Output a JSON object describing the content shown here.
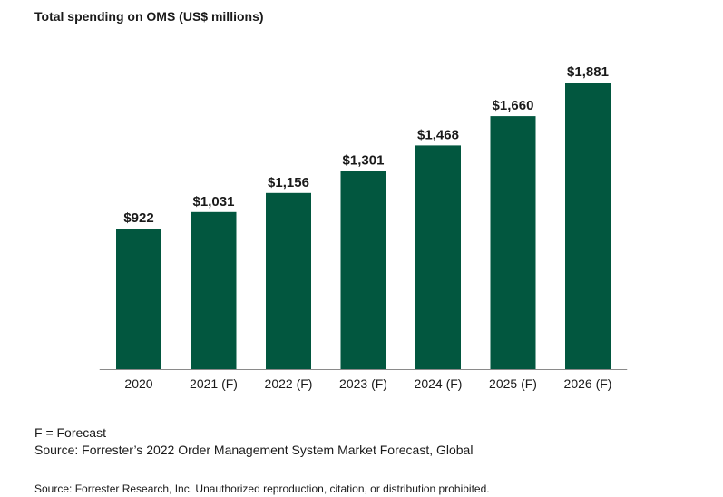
{
  "chart_data": {
    "type": "bar",
    "title": "Total spending on OMS (US$ millions)",
    "categories": [
      "2020",
      "2021 (F)",
      "2022 (F)",
      "2023 (F)",
      "2024 (F)",
      "2025 (F)",
      "2026 (F)"
    ],
    "values": [
      922,
      1031,
      1156,
      1301,
      1468,
      1660,
      1881
    ],
    "value_labels": [
      "$922",
      "$1,031",
      "$1,156",
      "$1,301",
      "$1,468",
      "$1,660",
      "$1,881"
    ],
    "xlabel": "",
    "ylabel": "",
    "ylim": [
      0,
      1881
    ],
    "grid": false,
    "legend": "none"
  },
  "colors": {
    "bar": "#02573f",
    "text": "#1a1a1a",
    "baseline": "#8a8a8a"
  },
  "notes": {
    "forecast_legend": "F = Forecast",
    "source": "Source: Forrester’s 2022 Order Management System Market Forecast, Global",
    "credit": "Source: Forrester Research, Inc. Unauthorized reproduction, citation, or distribution prohibited."
  }
}
